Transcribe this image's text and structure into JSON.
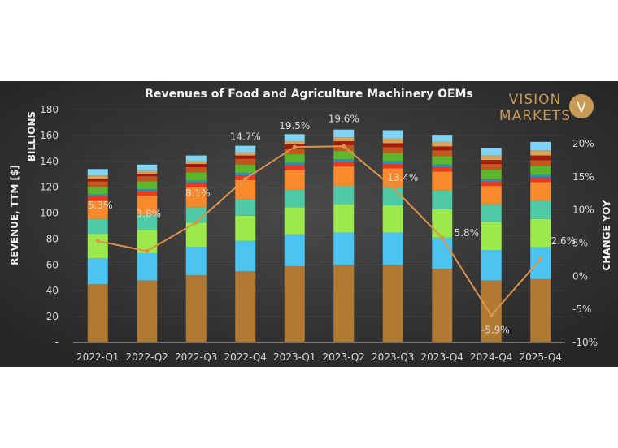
{
  "chart_data": {
    "type": "bar",
    "subtype": "stacked bar with line on secondary axis",
    "title": "Revenues of Food and Agriculture Machinery OEMs",
    "ylabel": "REVENUE, TTM [$]",
    "ylabel_unit": "BILLIONS",
    "y2label": "CHANGE YOY",
    "ylim": [
      0,
      180
    ],
    "y_ticks": [
      "-",
      "20",
      "40",
      "60",
      "80",
      "100",
      "120",
      "140",
      "160",
      "180"
    ],
    "y2lim": [
      -10,
      20
    ],
    "y2_ticks": [
      "-10%",
      "-5%",
      "0%",
      "5%",
      "10%",
      "15%",
      "20%"
    ],
    "grid": true,
    "legend": "none",
    "categories": [
      "2022-Q1",
      "2022-Q2",
      "2022-Q3",
      "2022-Q4",
      "2023-Q1",
      "2023-Q2",
      "2023-Q3",
      "2023-Q4",
      "2024-Q4",
      "2025-Q4"
    ],
    "series": [
      {
        "color": "#b07a35",
        "values": [
          45,
          48,
          52,
          55,
          59,
          60,
          60,
          57,
          48,
          49
        ]
      },
      {
        "color": "#4cc4f2",
        "values": [
          20,
          21,
          22,
          23.5,
          24.5,
          25,
          25,
          24,
          23.5,
          24.5
        ]
      },
      {
        "color": "#9de84c",
        "values": [
          19,
          18,
          18.5,
          19.5,
          21,
          22,
          21,
          22,
          21.5,
          22
        ]
      },
      {
        "color": "#4ecba6",
        "values": [
          11.5,
          11.5,
          12,
          12.5,
          13.5,
          14,
          14,
          14.5,
          14,
          14
        ]
      },
      {
        "color": "#f98a2c",
        "values": [
          14,
          15,
          15.5,
          15,
          15,
          15,
          14.5,
          14.5,
          14,
          14.5
        ]
      },
      {
        "color": "#e83a1e",
        "values": [
          3.5,
          3.5,
          3.5,
          3.5,
          4,
          3.5,
          3.5,
          3.5,
          3.5,
          3.5
        ]
      },
      {
        "color": "#2a8fc2",
        "values": [
          1.5,
          1.5,
          1.5,
          2,
          2,
          2,
          2,
          2,
          2,
          2
        ]
      },
      {
        "color": "#5cb52a",
        "values": [
          6,
          6,
          6.5,
          6.5,
          6.5,
          6.5,
          6.5,
          6.5,
          7,
          7
        ]
      },
      {
        "color": "#c2571e",
        "values": [
          4,
          4,
          4,
          4.5,
          4.5,
          4.5,
          4.5,
          4.5,
          4.5,
          4.5
        ]
      },
      {
        "color": "#a31a10",
        "values": [
          2,
          2,
          2.5,
          2.5,
          3,
          3,
          3,
          3,
          3,
          3.5
        ]
      },
      {
        "color": "#d9a255",
        "values": [
          2.5,
          2,
          2,
          2.5,
          2.5,
          3,
          3.5,
          3.5,
          3.5,
          4
        ]
      },
      {
        "color": "#7fd4f5",
        "values": [
          5,
          5,
          4.5,
          5,
          5.5,
          6,
          6.5,
          5.5,
          6,
          6.5
        ]
      }
    ],
    "line": {
      "name": "CHANGE YOY",
      "color": "#e0914a",
      "values": [
        5.3,
        3.8,
        8.1,
        14.7,
        19.5,
        19.6,
        13.4,
        5.8,
        -5.9,
        2.6
      ],
      "labels": [
        "5.3%",
        "3.8%",
        "8.1%",
        "14.7%",
        "19.5%",
        "19.6%",
        "13.4%",
        "5.8%",
        "-5.9%",
        "2.6%"
      ]
    }
  },
  "logo": {
    "line1": "VISION",
    "line2": "MARKETS",
    "mark": "V",
    "color": "#c99a54"
  }
}
